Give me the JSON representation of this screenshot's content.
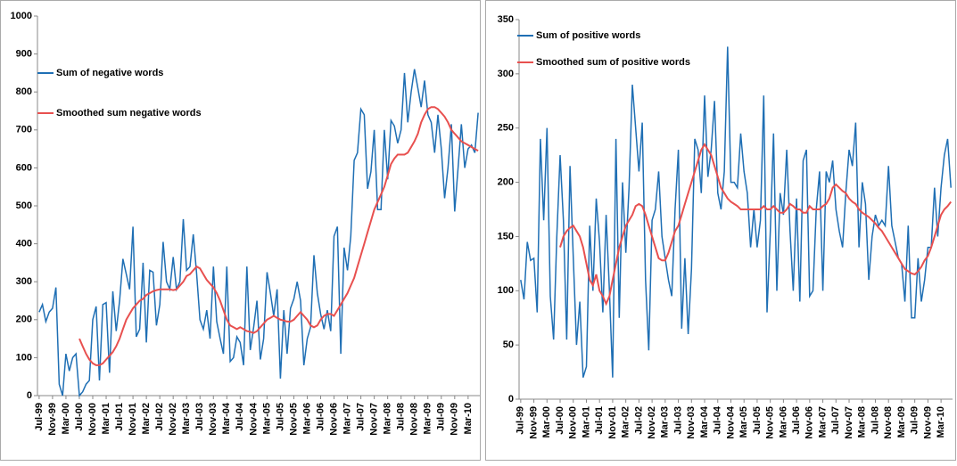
{
  "chart_data": [
    {
      "type": "line",
      "legend": "upper left",
      "grid": false,
      "ylim": [
        0,
        1000
      ],
      "yticks": [
        0,
        100,
        200,
        300,
        400,
        500,
        600,
        700,
        800,
        900,
        1000
      ],
      "categories": [
        "Jul-99",
        null,
        null,
        null,
        "Nov-99",
        null,
        null,
        null,
        "Mar-00",
        null,
        null,
        null,
        "Jul-00",
        null,
        null,
        null,
        "Nov-00",
        null,
        null,
        null,
        "Mar-01",
        null,
        null,
        null,
        "Jul-01",
        null,
        null,
        null,
        "Nov-01",
        null,
        null,
        null,
        "Mar-02",
        null,
        null,
        null,
        "Jul-02",
        null,
        null,
        null,
        "Nov-02",
        null,
        null,
        null,
        "Mar-03",
        null,
        null,
        null,
        "Jul-03",
        null,
        null,
        null,
        "Nov-03",
        null,
        null,
        null,
        "Mar-04",
        null,
        null,
        null,
        "Jul-04",
        null,
        null,
        null,
        "Nov-04",
        null,
        null,
        null,
        "Mar-05",
        null,
        null,
        null,
        "Jul-05",
        null,
        null,
        null,
        "Nov-05",
        null,
        null,
        null,
        "Mar-06",
        null,
        null,
        null,
        "Jul-06",
        null,
        null,
        null,
        "Nov-06",
        null,
        null,
        null,
        "Mar-07",
        null,
        null,
        null,
        "Jul-07",
        null,
        null,
        null,
        "Nov-07",
        null,
        null,
        null,
        "Mar-08",
        null,
        null,
        null,
        "Jul-08",
        null,
        null,
        null,
        "Nov-08",
        null,
        null,
        null,
        "Mar-09",
        null,
        null,
        null,
        "Jul-09",
        null,
        null,
        null,
        "Nov-09",
        null,
        null,
        null,
        "Mar-10",
        null,
        null,
        null
      ],
      "series": [
        {
          "name": "Sum of negative words",
          "color": "#1f6fb4",
          "values": [
            220,
            240,
            195,
            220,
            230,
            285,
            30,
            0,
            110,
            65,
            100,
            110,
            0,
            10,
            30,
            40,
            200,
            235,
            40,
            240,
            245,
            60,
            275,
            170,
            250,
            360,
            320,
            280,
            445,
            155,
            175,
            350,
            140,
            330,
            325,
            185,
            240,
            405,
            300,
            280,
            365,
            280,
            300,
            465,
            330,
            340,
            425,
            320,
            200,
            175,
            225,
            150,
            340,
            195,
            150,
            110,
            340,
            90,
            100,
            155,
            140,
            80,
            340,
            120,
            180,
            250,
            95,
            150,
            325,
            270,
            210,
            280,
            45,
            225,
            110,
            230,
            255,
            300,
            250,
            80,
            150,
            180,
            370,
            270,
            215,
            175,
            225,
            170,
            420,
            445,
            110,
            390,
            330,
            420,
            620,
            640,
            755,
            740,
            545,
            590,
            700,
            490,
            490,
            700,
            570,
            725,
            710,
            665,
            700,
            850,
            720,
            800,
            860,
            810,
            760,
            830,
            740,
            720,
            640,
            740,
            650,
            520,
            600,
            715,
            485,
            600,
            715,
            600,
            650,
            660,
            640,
            745
          ]
        },
        {
          "name": "Smoothed sum negative words",
          "color": "#e8504f",
          "values": [
            null,
            null,
            null,
            null,
            null,
            null,
            null,
            null,
            null,
            null,
            null,
            null,
            150,
            130,
            110,
            95,
            85,
            80,
            80,
            85,
            95,
            105,
            115,
            130,
            150,
            175,
            200,
            215,
            230,
            240,
            250,
            255,
            265,
            270,
            275,
            278,
            280,
            280,
            280,
            280,
            278,
            280,
            290,
            300,
            315,
            320,
            330,
            340,
            335,
            320,
            305,
            295,
            285,
            270,
            250,
            225,
            200,
            185,
            180,
            175,
            180,
            175,
            170,
            168,
            165,
            170,
            180,
            190,
            200,
            205,
            210,
            205,
            200,
            198,
            195,
            195,
            200,
            210,
            220,
            210,
            200,
            185,
            180,
            185,
            200,
            210,
            215,
            215,
            210,
            225,
            240,
            255,
            270,
            290,
            310,
            340,
            370,
            400,
            430,
            460,
            490,
            510,
            530,
            550,
            580,
            610,
            625,
            635,
            635,
            635,
            640,
            655,
            670,
            690,
            720,
            740,
            755,
            760,
            760,
            755,
            745,
            735,
            720,
            700,
            690,
            680,
            670,
            665,
            660,
            655,
            650,
            645
          ]
        }
      ]
    },
    {
      "type": "line",
      "legend": "upper left",
      "grid": false,
      "ylim": [
        0,
        350
      ],
      "yticks": [
        0,
        50,
        100,
        150,
        200,
        250,
        300,
        350
      ],
      "categories": [
        "Jul-99",
        null,
        null,
        null,
        "Nov-99",
        null,
        null,
        null,
        "Mar-00",
        null,
        null,
        null,
        "Jul-00",
        null,
        null,
        null,
        "Nov-00",
        null,
        null,
        null,
        "Mar-01",
        null,
        null,
        null,
        "Jul-01",
        null,
        null,
        null,
        "Nov-01",
        null,
        null,
        null,
        "Mar-02",
        null,
        null,
        null,
        "Jul-02",
        null,
        null,
        null,
        "Nov-02",
        null,
        null,
        null,
        "Mar-03",
        null,
        null,
        null,
        "Jul-03",
        null,
        null,
        null,
        "Nov-03",
        null,
        null,
        null,
        "Mar-04",
        null,
        null,
        null,
        "Jul-04",
        null,
        null,
        null,
        "Nov-04",
        null,
        null,
        null,
        "Mar-05",
        null,
        null,
        null,
        "Jul-05",
        null,
        null,
        null,
        "Nov-05",
        null,
        null,
        null,
        "Mar-06",
        null,
        null,
        null,
        "Jul-06",
        null,
        null,
        null,
        "Nov-06",
        null,
        null,
        null,
        "Mar-07",
        null,
        null,
        null,
        "Jul-07",
        null,
        null,
        null,
        "Nov-07",
        null,
        null,
        null,
        "Mar-08",
        null,
        null,
        null,
        "Jul-08",
        null,
        null,
        null,
        "Nov-08",
        null,
        null,
        null,
        "Mar-09",
        null,
        null,
        null,
        "Jul-09",
        null,
        null,
        null,
        "Nov-09",
        null,
        null,
        null,
        "Mar-10",
        null,
        null,
        null
      ],
      "series": [
        {
          "name": "Sum of positive words",
          "color": "#1f6fb4",
          "values": [
            110,
            92,
            145,
            128,
            130,
            80,
            240,
            165,
            250,
            95,
            55,
            150,
            225,
            165,
            55,
            215,
            130,
            50,
            90,
            20,
            30,
            160,
            100,
            185,
            145,
            80,
            170,
            100,
            20,
            240,
            75,
            200,
            135,
            195,
            290,
            250,
            210,
            255,
            110,
            45,
            165,
            175,
            210,
            150,
            130,
            110,
            95,
            175,
            230,
            65,
            130,
            60,
            120,
            240,
            230,
            190,
            280,
            205,
            230,
            275,
            190,
            175,
            210,
            325,
            200,
            200,
            195,
            245,
            210,
            190,
            140,
            175,
            140,
            165,
            280,
            80,
            155,
            245,
            100,
            190,
            170,
            230,
            155,
            100,
            185,
            90,
            220,
            230,
            95,
            100,
            175,
            210,
            100,
            210,
            200,
            220,
            175,
            155,
            140,
            190,
            230,
            215,
            255,
            140,
            200,
            180,
            110,
            150,
            170,
            160,
            165,
            160,
            215,
            160,
            145,
            130,
            125,
            90,
            160,
            75,
            75,
            130,
            90,
            110,
            140,
            140,
            195,
            150,
            195,
            225,
            240,
            195
          ]
        },
        {
          "name": "Smoothed sum of positive words",
          "color": "#e8504f",
          "values": [
            null,
            null,
            null,
            null,
            null,
            null,
            null,
            null,
            null,
            null,
            null,
            null,
            140,
            150,
            155,
            158,
            160,
            155,
            150,
            140,
            125,
            110,
            105,
            115,
            100,
            95,
            88,
            95,
            110,
            125,
            140,
            150,
            160,
            165,
            170,
            178,
            180,
            178,
            170,
            160,
            150,
            140,
            130,
            128,
            128,
            135,
            145,
            155,
            160,
            170,
            180,
            190,
            200,
            210,
            220,
            230,
            235,
            230,
            225,
            215,
            205,
            195,
            190,
            185,
            182,
            180,
            178,
            175,
            175,
            175,
            175,
            175,
            175,
            175,
            178,
            175,
            175,
            178,
            175,
            172,
            172,
            175,
            180,
            178,
            175,
            175,
            172,
            172,
            178,
            175,
            175,
            175,
            178,
            180,
            185,
            195,
            198,
            195,
            192,
            190,
            185,
            182,
            180,
            175,
            172,
            170,
            168,
            165,
            162,
            158,
            155,
            150,
            145,
            140,
            135,
            130,
            125,
            120,
            118,
            116,
            115,
            118,
            122,
            128,
            132,
            140,
            150,
            160,
            170,
            175,
            178,
            182
          ]
        }
      ]
    }
  ]
}
